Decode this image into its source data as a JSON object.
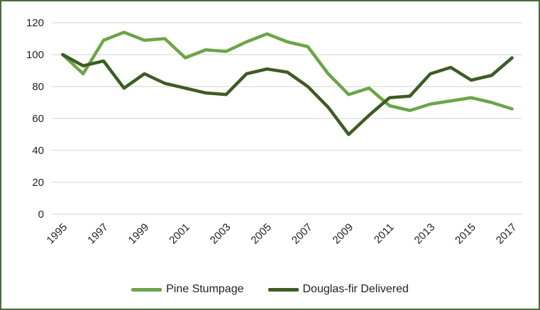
{
  "style": {
    "frame_border_color": "#4C6B35",
    "gridline_color": "#D9D9D9",
    "text_color": "#1f1f1f",
    "background_color": "#FFFFFF"
  },
  "chart_data": {
    "type": "line",
    "title": "",
    "xlabel": "",
    "ylabel": "",
    "grid": true,
    "legend_position": "bottom",
    "ylim": [
      0,
      120
    ],
    "yticks": [
      0,
      20,
      40,
      60,
      80,
      100,
      120
    ],
    "x": [
      1995,
      1996,
      1997,
      1998,
      1999,
      2000,
      2001,
      2002,
      2003,
      2004,
      2005,
      2006,
      2007,
      2008,
      2009,
      2010,
      2011,
      2012,
      2013,
      2014,
      2015,
      2016,
      2017
    ],
    "x_tick_labels": [
      "1995",
      "1997",
      "1999",
      "2001",
      "2003",
      "2005",
      "2007",
      "2009",
      "2011",
      "2013",
      "2015",
      "2017"
    ],
    "series": [
      {
        "name": "Pine Stumpage",
        "color": "#6BA547",
        "values": [
          100,
          88,
          109,
          114,
          109,
          110,
          98,
          103,
          102,
          108,
          113,
          108,
          105,
          88,
          75,
          79,
          68,
          65,
          69,
          71,
          73,
          70,
          66
        ]
      },
      {
        "name": "Douglas-fir Delivered",
        "color": "#3E5C23",
        "values": [
          100,
          93,
          96,
          79,
          88,
          82,
          79,
          76,
          75,
          88,
          91,
          89,
          80,
          67,
          50,
          62,
          73,
          74,
          88,
          92,
          84,
          87,
          98
        ]
      }
    ]
  }
}
